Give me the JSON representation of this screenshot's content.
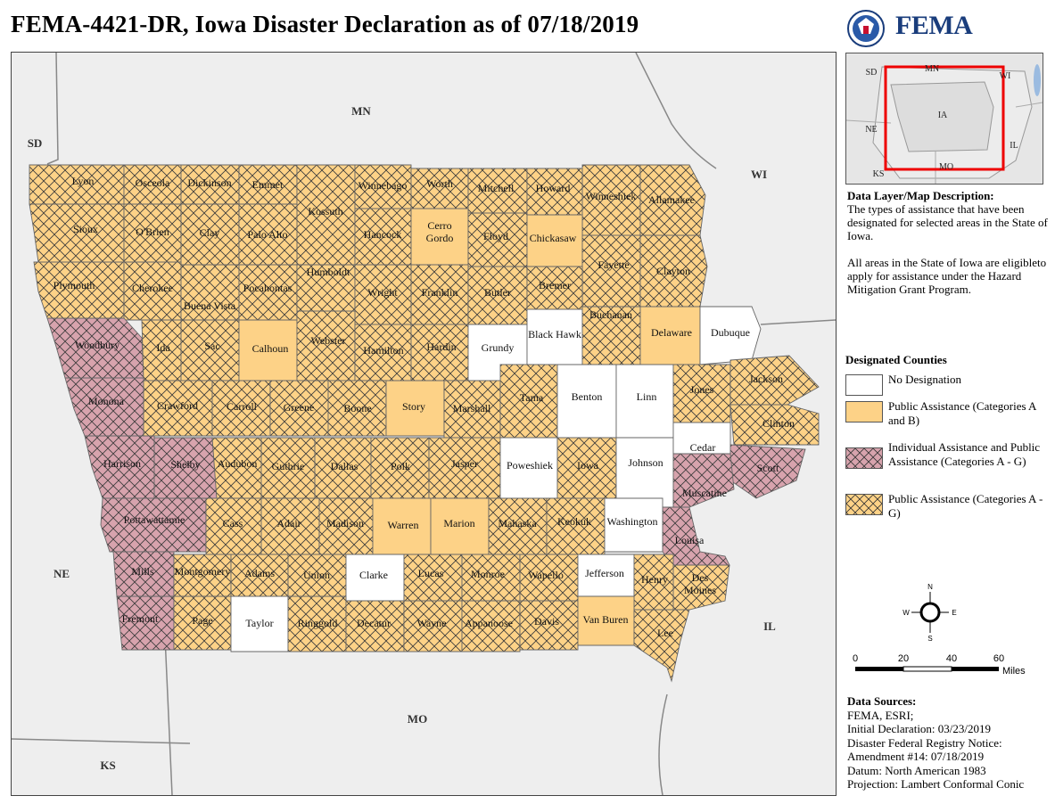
{
  "title": "FEMA-4421-DR, Iowa Disaster Declaration as of 07/18/2019",
  "logo": {
    "text": "FEMA",
    "icon": "dhs-seal-icon"
  },
  "colors": {
    "no_designation": "#ffffff",
    "pa_ab": "#fdd287",
    "ia_pa": "#d7a3ad",
    "pa_ag": "#fdd287",
    "hatch": "#333333",
    "border": "#666666",
    "background": "#eeeeee"
  },
  "map": {
    "state_labels": [
      "MN",
      "SD",
      "WI",
      "NE",
      "IL",
      "MO",
      "KS"
    ],
    "counties": [
      {
        "name": "Lyon",
        "designation": "pa_ag"
      },
      {
        "name": "Osceola",
        "designation": "pa_ag"
      },
      {
        "name": "Dickinson",
        "designation": "pa_ag"
      },
      {
        "name": "Emmet",
        "designation": "pa_ag"
      },
      {
        "name": "Kossuth",
        "designation": "pa_ag"
      },
      {
        "name": "Winnebago",
        "designation": "pa_ag"
      },
      {
        "name": "Worth",
        "designation": "pa_ag"
      },
      {
        "name": "Mitchell",
        "designation": "pa_ag"
      },
      {
        "name": "Howard",
        "designation": "pa_ag"
      },
      {
        "name": "Winneshiek",
        "designation": "pa_ag"
      },
      {
        "name": "Allamakee",
        "designation": "pa_ag"
      },
      {
        "name": "Sioux",
        "designation": "pa_ag"
      },
      {
        "name": "O'Brien",
        "designation": "pa_ag"
      },
      {
        "name": "Clay",
        "designation": "pa_ag"
      },
      {
        "name": "Palo Alto",
        "designation": "pa_ag"
      },
      {
        "name": "Hancock",
        "designation": "pa_ag"
      },
      {
        "name": "Cerro Gordo",
        "designation": "pa_ab"
      },
      {
        "name": "Floyd",
        "designation": "pa_ag"
      },
      {
        "name": "Chickasaw",
        "designation": "pa_ab"
      },
      {
        "name": "Fayette",
        "designation": "pa_ag"
      },
      {
        "name": "Clayton",
        "designation": "pa_ag"
      },
      {
        "name": "Plymouth",
        "designation": "pa_ag"
      },
      {
        "name": "Cherokee",
        "designation": "pa_ag"
      },
      {
        "name": "Buena Vista",
        "designation": "pa_ag"
      },
      {
        "name": "Pocahontas",
        "designation": "pa_ag"
      },
      {
        "name": "Humboldt",
        "designation": "pa_ag"
      },
      {
        "name": "Wright",
        "designation": "pa_ag"
      },
      {
        "name": "Franklin",
        "designation": "pa_ag"
      },
      {
        "name": "Butler",
        "designation": "pa_ag"
      },
      {
        "name": "Bremer",
        "designation": "pa_ag"
      },
      {
        "name": "Woodbury",
        "designation": "ia_pa"
      },
      {
        "name": "Ida",
        "designation": "pa_ag"
      },
      {
        "name": "Sac",
        "designation": "pa_ag"
      },
      {
        "name": "Calhoun",
        "designation": "pa_ab"
      },
      {
        "name": "Webster",
        "designation": "pa_ag"
      },
      {
        "name": "Hamilton",
        "designation": "pa_ag"
      },
      {
        "name": "Hardin",
        "designation": "pa_ag"
      },
      {
        "name": "Grundy",
        "designation": "none"
      },
      {
        "name": "Black Hawk",
        "designation": "none"
      },
      {
        "name": "Buchanan",
        "designation": "pa_ag"
      },
      {
        "name": "Delaware",
        "designation": "pa_ab"
      },
      {
        "name": "Dubuque",
        "designation": "none"
      },
      {
        "name": "Monona",
        "designation": "ia_pa"
      },
      {
        "name": "Crawford",
        "designation": "pa_ag"
      },
      {
        "name": "Carroll",
        "designation": "pa_ag"
      },
      {
        "name": "Greene",
        "designation": "pa_ag"
      },
      {
        "name": "Boone",
        "designation": "pa_ag"
      },
      {
        "name": "Story",
        "designation": "pa_ab"
      },
      {
        "name": "Marshall",
        "designation": "pa_ag"
      },
      {
        "name": "Tama",
        "designation": "pa_ag"
      },
      {
        "name": "Benton",
        "designation": "none"
      },
      {
        "name": "Linn",
        "designation": "none"
      },
      {
        "name": "Jones",
        "designation": "pa_ag"
      },
      {
        "name": "Jackson",
        "designation": "pa_ag"
      },
      {
        "name": "Clinton",
        "designation": "pa_ag"
      },
      {
        "name": "Harrison",
        "designation": "ia_pa"
      },
      {
        "name": "Shelby",
        "designation": "ia_pa"
      },
      {
        "name": "Audubon",
        "designation": "pa_ag"
      },
      {
        "name": "Guthrie",
        "designation": "pa_ag"
      },
      {
        "name": "Dallas",
        "designation": "pa_ag"
      },
      {
        "name": "Polk",
        "designation": "pa_ag"
      },
      {
        "name": "Jasper",
        "designation": "pa_ag"
      },
      {
        "name": "Poweshiek",
        "designation": "none"
      },
      {
        "name": "Iowa",
        "designation": "pa_ag"
      },
      {
        "name": "Johnson",
        "designation": "none"
      },
      {
        "name": "Cedar",
        "designation": "none"
      },
      {
        "name": "Scott",
        "designation": "ia_pa"
      },
      {
        "name": "Muscatine",
        "designation": "ia_pa"
      },
      {
        "name": "Pottawattamie",
        "designation": "ia_pa"
      },
      {
        "name": "Cass",
        "designation": "pa_ag"
      },
      {
        "name": "Adair",
        "designation": "pa_ag"
      },
      {
        "name": "Madison",
        "designation": "pa_ag"
      },
      {
        "name": "Warren",
        "designation": "pa_ab"
      },
      {
        "name": "Marion",
        "designation": "pa_ab"
      },
      {
        "name": "Mahaska",
        "designation": "pa_ag"
      },
      {
        "name": "Keokuk",
        "designation": "pa_ag"
      },
      {
        "name": "Washington",
        "designation": "none"
      },
      {
        "name": "Louisa",
        "designation": "ia_pa"
      },
      {
        "name": "Mills",
        "designation": "ia_pa"
      },
      {
        "name": "Montgomery",
        "designation": "pa_ag"
      },
      {
        "name": "Adams",
        "designation": "pa_ag"
      },
      {
        "name": "Union",
        "designation": "pa_ag"
      },
      {
        "name": "Clarke",
        "designation": "none"
      },
      {
        "name": "Lucas",
        "designation": "pa_ag"
      },
      {
        "name": "Monroe",
        "designation": "pa_ag"
      },
      {
        "name": "Wapello",
        "designation": "pa_ag"
      },
      {
        "name": "Jefferson",
        "designation": "none"
      },
      {
        "name": "Henry",
        "designation": "pa_ag"
      },
      {
        "name": "Des Moines",
        "designation": "pa_ag"
      },
      {
        "name": "Fremont",
        "designation": "ia_pa"
      },
      {
        "name": "Page",
        "designation": "pa_ag"
      },
      {
        "name": "Taylor",
        "designation": "none"
      },
      {
        "name": "Ringgold",
        "designation": "pa_ag"
      },
      {
        "name": "Decatur",
        "designation": "pa_ag"
      },
      {
        "name": "Wayne",
        "designation": "pa_ag"
      },
      {
        "name": "Appanoose",
        "designation": "pa_ag"
      },
      {
        "name": "Davis",
        "designation": "pa_ag"
      },
      {
        "name": "Van Buren",
        "designation": "pa_ab"
      },
      {
        "name": "Lee",
        "designation": "pa_ag"
      }
    ]
  },
  "inset": {
    "labels": [
      "SD",
      "MN",
      "WI",
      "IA",
      "NE",
      "IL",
      "KS",
      "MO"
    ]
  },
  "description": {
    "heading": "Data Layer/Map Description:",
    "p1": "The types of assistance that have been designated for selected areas in the State of Iowa.",
    "p2": "All areas in the State of Iowa are eligibleto apply for assistance under the Hazard Mitigation Grant Program."
  },
  "legend": {
    "heading": "Designated Counties",
    "items": [
      {
        "key": "none",
        "label": "No Designation"
      },
      {
        "key": "pa_ab",
        "label": "Public Assistance (Categories A and B)"
      },
      {
        "key": "ia_pa",
        "label": "Individual Assistance and Public Assistance (Categories A - G)"
      },
      {
        "key": "pa_ag",
        "label": "Public Assistance (Categories A - G)"
      }
    ]
  },
  "compass": {
    "n": "N",
    "s": "S",
    "e": "E",
    "w": "W"
  },
  "scale": {
    "ticks": [
      "0",
      "20",
      "40",
      "60"
    ],
    "unit": "Miles"
  },
  "sources": {
    "heading": "Data Sources:",
    "lines": [
      "FEMA, ESRI;",
      "Initial Declaration: 03/23/2019",
      "Disaster Federal Registry Notice:",
      "Amendment #14: 07/18/2019",
      "Datum: North American 1983",
      "Projection: Lambert Conformal Conic"
    ]
  }
}
